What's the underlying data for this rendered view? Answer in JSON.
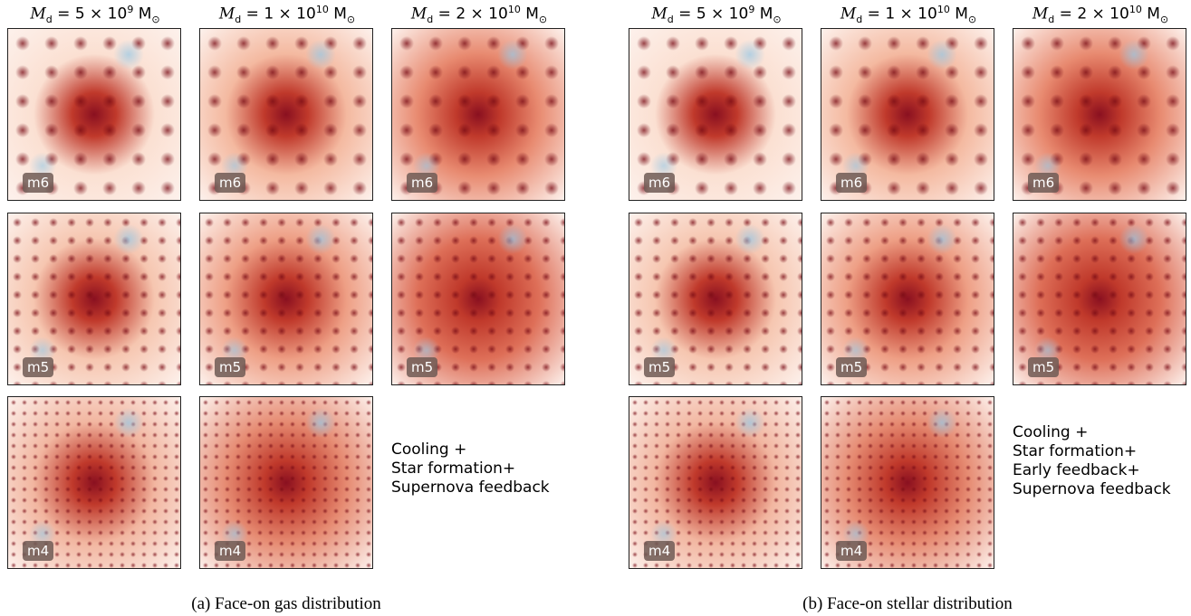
{
  "panels": [
    {
      "columns": [
        {
          "symbol": "M",
          "sub": "d",
          "coef": " = 5 × 10",
          "exp": "9",
          "unit": " M",
          "unit_sub": "⊙"
        },
        {
          "symbol": "M",
          "sub": "d",
          "coef": " = 1 × 10",
          "exp": "10",
          "unit": " M",
          "unit_sub": "⊙"
        },
        {
          "symbol": "M",
          "sub": "d",
          "coef": " = 2 × 10",
          "exp": "10",
          "unit": " M",
          "unit_sub": "⊙"
        }
      ],
      "rows": [
        [
          "m6",
          "m6",
          "m6"
        ],
        [
          "m5",
          "m5",
          "m5"
        ],
        [
          "m4",
          "m4"
        ]
      ],
      "annotation": [
        "Cooling +",
        "Star formation+",
        "Supernova feedback"
      ],
      "caption": "(a) Face-on gas distribution"
    },
    {
      "columns": [
        {
          "symbol": "M",
          "sub": "d",
          "coef": " = 5 × 10",
          "exp": "9",
          "unit": " M",
          "unit_sub": "⊙"
        },
        {
          "symbol": "M",
          "sub": "d",
          "coef": " = 1 × 10",
          "exp": "10",
          "unit": " M",
          "unit_sub": "⊙"
        },
        {
          "symbol": "M",
          "sub": "d",
          "coef": " = 2 × 10",
          "exp": "10",
          "unit": " M",
          "unit_sub": "⊙"
        }
      ],
      "rows": [
        [
          "m6",
          "m6",
          "m6"
        ],
        [
          "m5",
          "m5",
          "m5"
        ],
        [
          "m4",
          "m4"
        ]
      ],
      "annotation": [
        "Cooling +",
        "Star formation+",
        "Early feedback+",
        "Supernova feedback"
      ],
      "caption": "(b) Face-on stellar distribution"
    }
  ]
}
